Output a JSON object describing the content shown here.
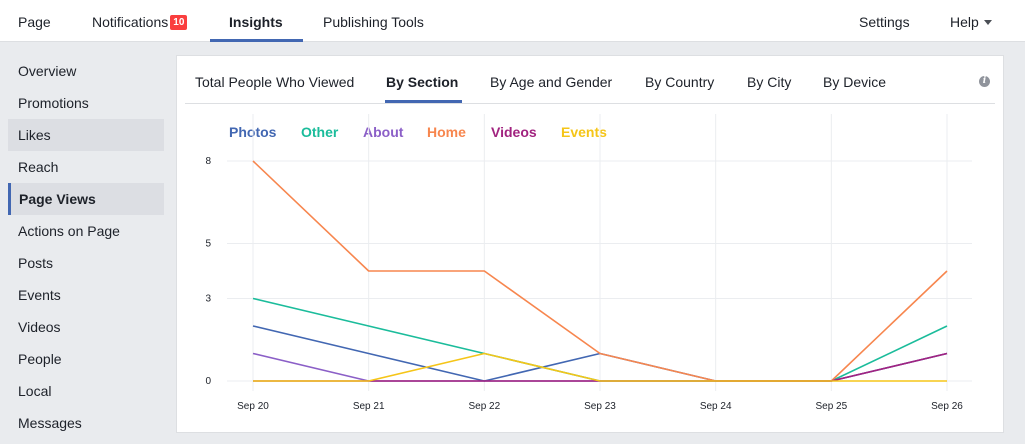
{
  "topnav": {
    "page": "Page",
    "notifications": "Notifications",
    "notifications_count": "10",
    "insights": "Insights",
    "publishing_tools": "Publishing Tools",
    "settings": "Settings",
    "help": "Help"
  },
  "sidebar": {
    "items": [
      {
        "label": "Overview"
      },
      {
        "label": "Promotions"
      },
      {
        "label": "Likes"
      },
      {
        "label": "Reach"
      },
      {
        "label": "Page Views"
      },
      {
        "label": "Actions on Page"
      },
      {
        "label": "Posts"
      },
      {
        "label": "Events"
      },
      {
        "label": "Videos"
      },
      {
        "label": "People"
      },
      {
        "label": "Local"
      },
      {
        "label": "Messages"
      }
    ],
    "active": "Page Views"
  },
  "subtabs": {
    "items": [
      {
        "label": "Total People Who Viewed"
      },
      {
        "label": "By Section"
      },
      {
        "label": "By Age and Gender"
      },
      {
        "label": "By Country"
      },
      {
        "label": "By City"
      },
      {
        "label": "By Device"
      }
    ],
    "active": "By Section",
    "info_icon": "i"
  },
  "colors": {
    "accent": "#4267b2",
    "badge": "#fa3e3e"
  },
  "chart_data": {
    "type": "line",
    "categories": [
      "Sep 20",
      "Sep 21",
      "Sep 22",
      "Sep 23",
      "Sep 24",
      "Sep 25",
      "Sep 26"
    ],
    "y_ticks": [
      0,
      3,
      5,
      8
    ],
    "ylim": [
      0,
      8
    ],
    "grid": true,
    "legend_position": "top-left",
    "series": [
      {
        "name": "Photos",
        "color": "#4267b2",
        "values": [
          2,
          1,
          0,
          1,
          0,
          0,
          1
        ]
      },
      {
        "name": "Other",
        "color": "#1bbc9b",
        "values": [
          3,
          2,
          1,
          0,
          0,
          0,
          2
        ]
      },
      {
        "name": "About",
        "color": "#8b5fc7",
        "values": [
          1,
          0,
          0,
          0,
          0,
          0,
          1
        ]
      },
      {
        "name": "Home",
        "color": "#f7864e",
        "values": [
          8,
          4,
          4,
          1,
          0,
          0,
          4
        ]
      },
      {
        "name": "Videos",
        "color": "#a1237f",
        "values": [
          0,
          0,
          0,
          0,
          0,
          0,
          1
        ]
      },
      {
        "name": "Events",
        "color": "#f5c518",
        "values": [
          0,
          0,
          1,
          0,
          0,
          0,
          0
        ]
      }
    ]
  }
}
